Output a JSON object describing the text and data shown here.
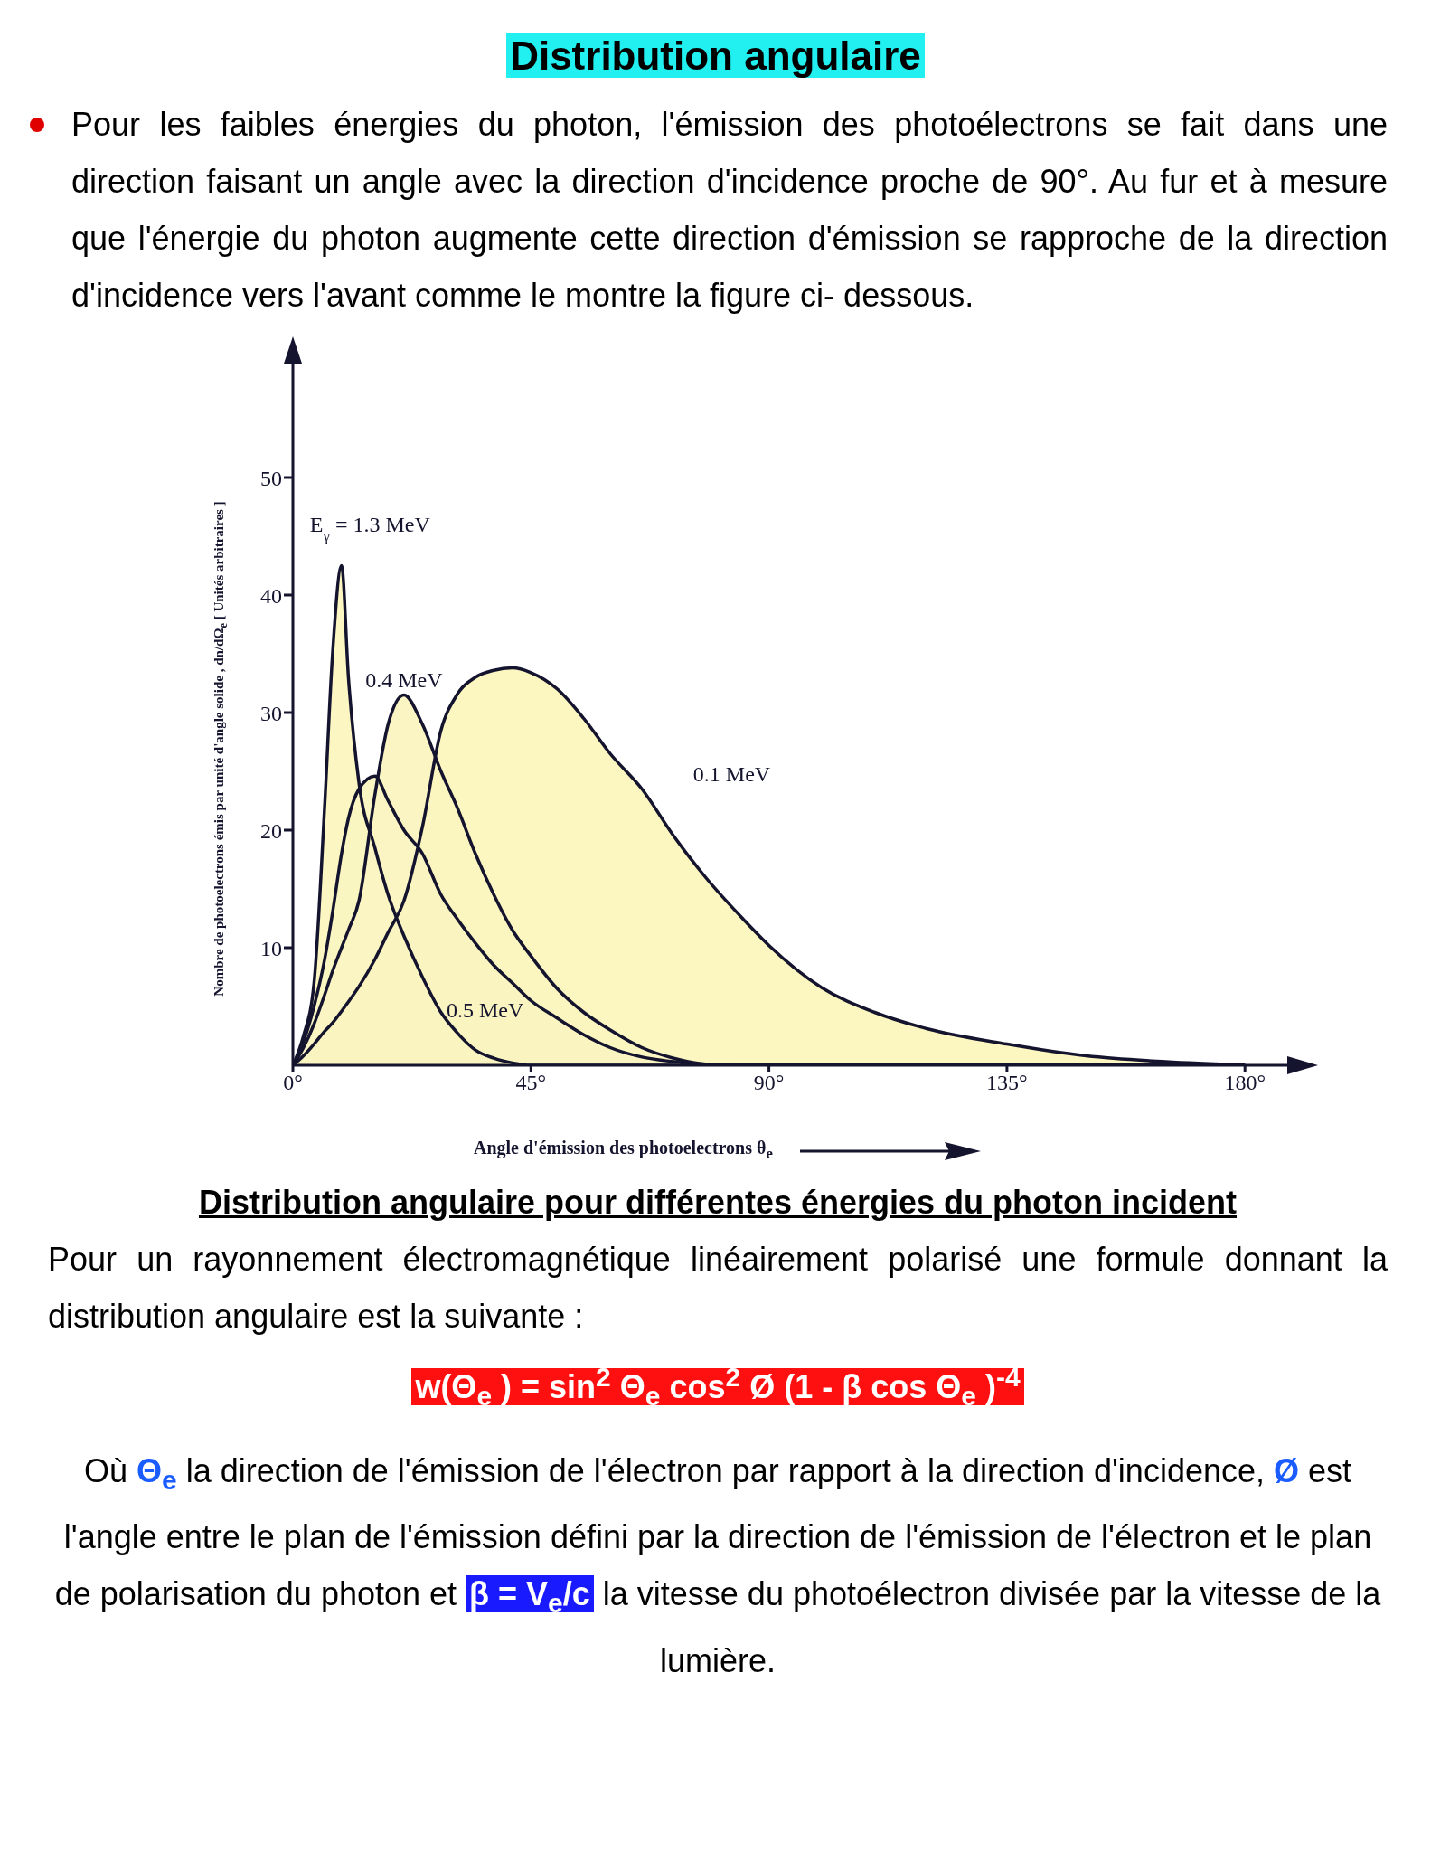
{
  "chart_data": {
    "type": "area",
    "title": "Distribution angulaire",
    "xlabel": "Angle d'émission des photoelectrons θ$_{e}$",
    "ylabel": "Nombre de photoelectrons émis par unité d'angle solide , dn/dΩ$_{e}$ [ Unités arbitraires ]",
    "x": [
      0,
      2,
      4,
      6,
      7.5,
      9.2,
      10.5,
      12.5,
      15.5,
      18,
      21,
      24.5,
      28,
      31,
      34.5,
      38,
      41.5,
      45,
      50,
      55,
      60,
      66,
      72,
      78,
      85,
      90,
      100,
      110,
      120,
      135,
      150,
      165,
      180
    ],
    "series": [
      {
        "name": "E$_{γ}$ = 1.3 MeV",
        "color": "#fbf6c2",
        "values": [
          0,
          2.5,
          7,
          22,
          35,
          42.5,
          33,
          24,
          18.5,
          14.5,
          11,
          7.5,
          4.5,
          2.8,
          1.3,
          0.6,
          0.2,
          0,
          0,
          0,
          0,
          0,
          0,
          0,
          0,
          0,
          0,
          0,
          0,
          0,
          0,
          0,
          0
        ]
      },
      {
        "name": "0.4 MeV",
        "color": "#fbf5c4",
        "values": [
          0,
          1.5,
          3.5,
          6,
          8,
          10,
          11.5,
          14,
          23,
          29,
          31.5,
          29,
          25,
          22,
          18,
          14.5,
          11.5,
          9.3,
          6.5,
          4.5,
          3,
          1.5,
          0.6,
          0.1,
          0,
          0,
          0,
          0,
          0,
          0,
          0,
          0,
          0
        ]
      },
      {
        "name": "0.1 MeV",
        "color": "#fcf6c0",
        "values": [
          0,
          0.8,
          1.8,
          2.9,
          3.6,
          4.6,
          5.4,
          6.7,
          9,
          11.3,
          14,
          20.3,
          28.5,
          31.5,
          33,
          33.6,
          33.8,
          33.4,
          32,
          29.5,
          26.5,
          23.5,
          19.5,
          16,
          12.5,
          10.2,
          6.6,
          4.5,
          3.1,
          1.8,
          0.8,
          0.3,
          0
        ]
      },
      {
        "name": "0.5 MeV",
        "color": "#faf6c3",
        "values": [
          0,
          2,
          5,
          9,
          13,
          18,
          21,
          23.5,
          24.6,
          22.5,
          20,
          18,
          14.5,
          12.5,
          10.4,
          8.5,
          7,
          5.5,
          4,
          2.6,
          1.5,
          0.7,
          0.3,
          0,
          0,
          0,
          0,
          0,
          0,
          0,
          0,
          0,
          0
        ]
      }
    ],
    "xlim": [
      0,
      188
    ],
    "xticks": [
      {
        "value": 0,
        "label": "0°"
      },
      {
        "value": 45,
        "label": "45°"
      },
      {
        "value": 90,
        "label": "90°"
      },
      {
        "value": 135,
        "label": "135°"
      },
      {
        "value": 180,
        "label": "180°"
      }
    ],
    "ylim": [
      0,
      60
    ],
    "yticks": [
      10,
      20,
      30,
      40,
      50
    ],
    "grid": false,
    "legend": false,
    "annotations": [
      "Pour les faibles énergies du photon, l'émission des photoélectrons se fait dans une direction faisant un angle avec la direction d'incidence proche de 90°. Au fur et à mesure que l'énergie du photon augmente cette direction d'émission se rapproche de la direction d'incidence vers l'avant comme le montre la figure ci- dessous.",
      "Distribution angulaire pour différentes énergies du photon incident",
      "Pour un rayonnement électromagnétique linéairement polarisé une formule donnant la distribution angulaire est la suivante :",
      "w(Θ$_{e}$ ) = sin$^{2}$ Θ$_{e}$ cos$^{2}$ Ø (1 - β cos Θ$_{e}$ )$^{-4}$",
      "Où",
      "Θ$_{e}$",
      "la direction de l'émission de l'électron par rapport à la direction d'incidence,",
      "Ø",
      "est l'angle entre le plan de l'émission défini par la direction de l'émission de l'électron et le plan de polarisation du photon et",
      "β = V$_{e}$/c",
      "la vitesse du photoélectron divisée par la vitesse de la lumière."
    ]
  }
}
